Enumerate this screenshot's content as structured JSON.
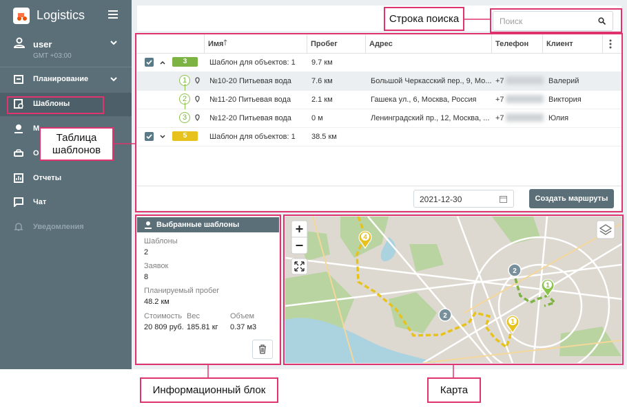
{
  "sidebar": {
    "app_title": "Logistics",
    "user": {
      "name": "user",
      "timezone": "GMT +03:00"
    },
    "menu": [
      "Планирование",
      "Шаблоны",
      "М",
      "О",
      "Отчеты",
      "Чат",
      "Уведомления"
    ]
  },
  "search": {
    "placeholder": "Поиск"
  },
  "table": {
    "columns": [
      "Имя",
      "Пробег",
      "Адрес",
      "Телефон",
      "Клиент"
    ],
    "groups": [
      {
        "count": 3,
        "color": "#7cb342",
        "name": "Шаблон для объектов: 1",
        "mileage": "9.7 км",
        "rows": [
          {
            "index": 1,
            "name": "№10-20 Питьевая вода",
            "mileage": "7.6 км",
            "address": "Большой Черкасский пер., 9, Мо...",
            "phone": "+7",
            "client": "Валерий"
          },
          {
            "index": 2,
            "name": "№11-20 Питьевая вода",
            "mileage": "2.1 км",
            "address": "Гашека ул., 6, Москва, Россия",
            "phone": "+7",
            "client": "Виктория"
          },
          {
            "index": 3,
            "name": "№12-20 Питьевая вода",
            "mileage": "0 м",
            "address": "Ленинградский пр., 12, Москва, ...",
            "phone": "+7",
            "client": "Юлия"
          }
        ]
      },
      {
        "count": 5,
        "color": "#e8c21c",
        "name": "Шаблон для объектов: 1",
        "mileage": "38.5 км",
        "rows": []
      }
    ],
    "footer": {
      "date": "2021-12-30",
      "button": "Создать маршруты"
    }
  },
  "info": {
    "title": "Выбранные шаблоны",
    "fields": [
      {
        "label": "Шаблоны",
        "value": "2"
      },
      {
        "label": "Заявок",
        "value": "8"
      },
      {
        "label": "Планируемый пробег",
        "value": "48.2 км"
      }
    ],
    "stats": [
      {
        "label": "Стоимость",
        "value": "20 809 руб."
      },
      {
        "label": "Вес",
        "value": "185.81 кг"
      },
      {
        "label": "Объем",
        "value": "0.37 м3"
      }
    ]
  },
  "map": {
    "markers": [
      {
        "label": "4",
        "color": "#e8c21c",
        "kind": "pin"
      },
      {
        "label": "2",
        "color": "#78909c",
        "kind": "cluster"
      },
      {
        "label": "2",
        "color": "#78909c",
        "kind": "cluster"
      },
      {
        "label": "1",
        "color": "#8bc34a",
        "kind": "pin"
      },
      {
        "label": "1",
        "color": "#e8c21c",
        "kind": "pin"
      }
    ]
  },
  "annotations": {
    "search": "Строка поиска",
    "table": "Таблица шаблонов",
    "info": "Информационный блок",
    "map": "Карта"
  }
}
